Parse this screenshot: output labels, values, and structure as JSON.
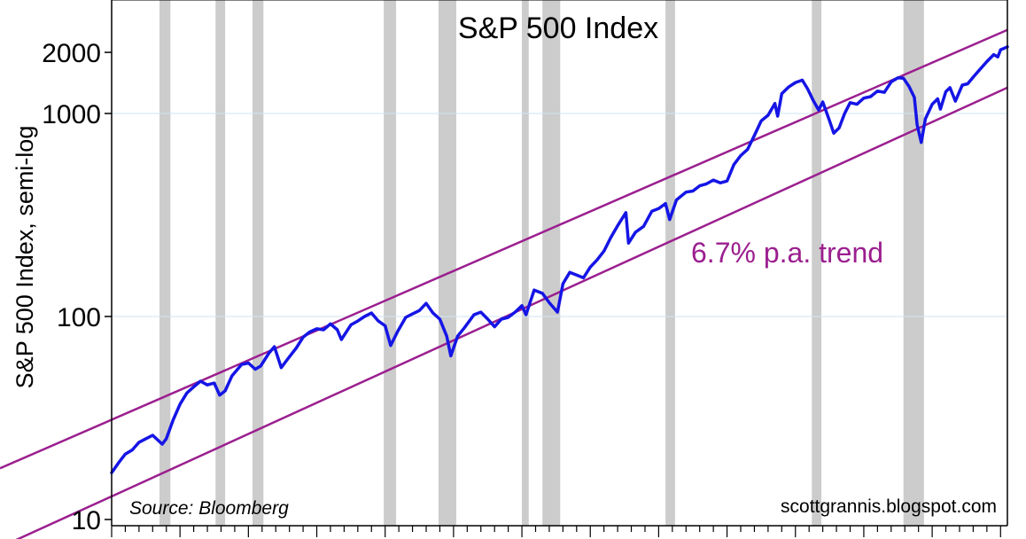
{
  "chart_data": {
    "type": "line",
    "title": "S&P 500 Index",
    "ylabel": "S&P 500 Index, semi-log",
    "xlabel": "",
    "yscale": "log",
    "ylim": [
      10,
      3300
    ],
    "xlim": [
      1950,
      2015.5
    ],
    "yticks": [
      {
        "value": 10,
        "label": "10"
      },
      {
        "value": 100,
        "label": "100"
      },
      {
        "value": 1000,
        "label": "1000"
      },
      {
        "value": 2000,
        "label": "2000"
      }
    ],
    "gridlines_at": [
      100,
      1000
    ],
    "annotations": {
      "trend_label": "6.7% p.a. trend",
      "source": "Source: Bloomberg",
      "credit": "scottgrannis.blogspot.com"
    },
    "colors": {
      "series": "#1515e6",
      "trend": "#9b1f8f",
      "recession": "#cccccc",
      "grid": "#cfe6f5"
    },
    "recessions": [
      [
        1953.5,
        1954.3
      ],
      [
        1957.6,
        1958.3
      ],
      [
        1960.3,
        1961.1
      ],
      [
        1969.9,
        1970.8
      ],
      [
        1973.9,
        1975.2
      ],
      [
        1980.0,
        1980.5
      ],
      [
        1981.5,
        1982.8
      ],
      [
        1990.5,
        1991.2
      ],
      [
        2001.2,
        2001.9
      ],
      [
        2007.9,
        2009.4
      ]
    ],
    "trend_lines": [
      {
        "name": "upper trend",
        "growth_rate": 0.067,
        "points": [
          [
            1950,
            31
          ],
          [
            2015.5,
            2580
          ]
        ]
      },
      {
        "name": "lower trend",
        "growth_rate": 0.067,
        "points": [
          [
            1950,
            13
          ],
          [
            2015.5,
            1340
          ]
        ]
      }
    ],
    "series": [
      {
        "name": "S&P 500 Index",
        "points": [
          [
            1950.0,
            17
          ],
          [
            1950.5,
            19
          ],
          [
            1951.0,
            21
          ],
          [
            1951.5,
            22
          ],
          [
            1952.0,
            24
          ],
          [
            1952.5,
            25
          ],
          [
            1953.0,
            26
          ],
          [
            1953.7,
            23.5
          ],
          [
            1954.0,
            25
          ],
          [
            1954.5,
            31
          ],
          [
            1955.0,
            37
          ],
          [
            1955.5,
            42
          ],
          [
            1956.0,
            45
          ],
          [
            1956.5,
            48
          ],
          [
            1957.0,
            46
          ],
          [
            1957.5,
            47
          ],
          [
            1957.9,
            41
          ],
          [
            1958.3,
            43
          ],
          [
            1958.8,
            51
          ],
          [
            1959.5,
            58
          ],
          [
            1960.0,
            59
          ],
          [
            1960.5,
            55
          ],
          [
            1960.9,
            57
          ],
          [
            1961.5,
            66
          ],
          [
            1961.9,
            71
          ],
          [
            1962.4,
            56
          ],
          [
            1962.9,
            62
          ],
          [
            1963.5,
            70
          ],
          [
            1964.0,
            79
          ],
          [
            1964.5,
            84
          ],
          [
            1965.0,
            87
          ],
          [
            1965.5,
            86
          ],
          [
            1966.0,
            92
          ],
          [
            1966.5,
            86
          ],
          [
            1966.8,
            77
          ],
          [
            1967.5,
            91
          ],
          [
            1968.0,
            95
          ],
          [
            1968.5,
            100
          ],
          [
            1969.0,
            104
          ],
          [
            1969.5,
            95
          ],
          [
            1970.0,
            90
          ],
          [
            1970.4,
            72
          ],
          [
            1970.9,
            84
          ],
          [
            1971.5,
            99
          ],
          [
            1972.0,
            103
          ],
          [
            1972.5,
            107
          ],
          [
            1973.0,
            116
          ],
          [
            1973.5,
            104
          ],
          [
            1974.0,
            97
          ],
          [
            1974.5,
            80
          ],
          [
            1974.8,
            64
          ],
          [
            1975.3,
            80
          ],
          [
            1975.8,
            88
          ],
          [
            1976.5,
            102
          ],
          [
            1977.0,
            105
          ],
          [
            1977.5,
            97
          ],
          [
            1978.0,
            89
          ],
          [
            1978.5,
            97
          ],
          [
            1979.0,
            99
          ],
          [
            1979.5,
            105
          ],
          [
            1980.0,
            113
          ],
          [
            1980.3,
            102
          ],
          [
            1980.9,
            135
          ],
          [
            1981.5,
            130
          ],
          [
            1982.0,
            117
          ],
          [
            1982.6,
            105
          ],
          [
            1983.0,
            145
          ],
          [
            1983.5,
            165
          ],
          [
            1984.0,
            160
          ],
          [
            1984.5,
            155
          ],
          [
            1985.0,
            175
          ],
          [
            1985.5,
            190
          ],
          [
            1986.0,
            210
          ],
          [
            1986.5,
            245
          ],
          [
            1987.0,
            280
          ],
          [
            1987.6,
            325
          ],
          [
            1987.8,
            230
          ],
          [
            1988.3,
            260
          ],
          [
            1988.9,
            278
          ],
          [
            1989.5,
            330
          ],
          [
            1990.0,
            340
          ],
          [
            1990.5,
            360
          ],
          [
            1990.8,
            300
          ],
          [
            1991.3,
            375
          ],
          [
            1992.0,
            410
          ],
          [
            1992.5,
            415
          ],
          [
            1993.0,
            440
          ],
          [
            1993.5,
            450
          ],
          [
            1994.0,
            470
          ],
          [
            1994.5,
            455
          ],
          [
            1995.0,
            465
          ],
          [
            1995.5,
            560
          ],
          [
            1996.0,
            620
          ],
          [
            1996.5,
            665
          ],
          [
            1997.0,
            780
          ],
          [
            1997.5,
            920
          ],
          [
            1998.0,
            980
          ],
          [
            1998.5,
            1120
          ],
          [
            1998.7,
            970
          ],
          [
            1999.0,
            1250
          ],
          [
            1999.5,
            1350
          ],
          [
            2000.0,
            1420
          ],
          [
            2000.5,
            1460
          ],
          [
            2000.9,
            1320
          ],
          [
            2001.3,
            1160
          ],
          [
            2001.7,
            1040
          ],
          [
            2002.0,
            1140
          ],
          [
            2002.5,
            920
          ],
          [
            2002.8,
            800
          ],
          [
            2003.2,
            850
          ],
          [
            2003.6,
            1000
          ],
          [
            2004.0,
            1130
          ],
          [
            2004.5,
            1110
          ],
          [
            2005.0,
            1190
          ],
          [
            2005.5,
            1210
          ],
          [
            2006.0,
            1290
          ],
          [
            2006.5,
            1270
          ],
          [
            2007.0,
            1430
          ],
          [
            2007.5,
            1500
          ],
          [
            2007.9,
            1490
          ],
          [
            2008.3,
            1360
          ],
          [
            2008.7,
            1200
          ],
          [
            2008.9,
            880
          ],
          [
            2009.2,
            720
          ],
          [
            2009.5,
            940
          ],
          [
            2010.0,
            1110
          ],
          [
            2010.4,
            1180
          ],
          [
            2010.6,
            1050
          ],
          [
            2011.0,
            1280
          ],
          [
            2011.3,
            1340
          ],
          [
            2011.7,
            1150
          ],
          [
            2012.2,
            1380
          ],
          [
            2012.6,
            1400
          ],
          [
            2013.0,
            1510
          ],
          [
            2013.5,
            1650
          ],
          [
            2014.0,
            1800
          ],
          [
            2014.5,
            1950
          ],
          [
            2014.8,
            1900
          ],
          [
            2015.0,
            2060
          ],
          [
            2015.3,
            2100
          ],
          [
            2015.5,
            2130
          ]
        ]
      }
    ]
  }
}
